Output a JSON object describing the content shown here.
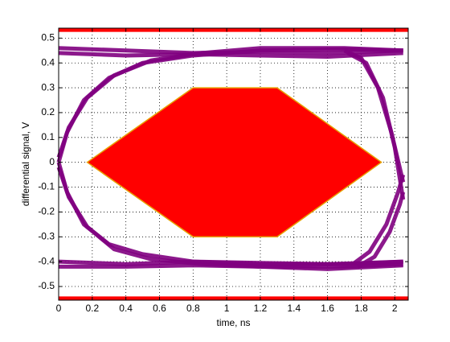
{
  "chart_data": {
    "type": "eye",
    "xlabel": "time, ns",
    "ylabel": "differential signal, V",
    "xlim": [
      0,
      2.08
    ],
    "ylim": [
      -0.555,
      0.54
    ],
    "xticks": [
      0,
      0.2,
      0.4,
      0.6,
      0.8,
      1,
      1.2,
      1.4,
      1.6,
      1.8,
      2
    ],
    "yticks": [
      -0.5,
      -0.4,
      -0.3,
      -0.2,
      -0.1,
      0,
      0.1,
      0.2,
      0.3,
      0.4,
      0.5
    ],
    "grid": true,
    "trace_color": "#800080",
    "traces": [
      {
        "x": [
          0,
          0.4,
          0.8,
          1.2,
          1.6,
          2.05
        ],
        "y": [
          0.46,
          0.45,
          0.44,
          0.445,
          0.44,
          0.45
        ]
      },
      {
        "x": [
          0,
          0.4,
          0.8,
          1.2,
          1.6,
          2.05
        ],
        "y": [
          0.44,
          0.43,
          0.435,
          0.43,
          0.425,
          0.44
        ]
      },
      {
        "x": [
          0,
          0.4,
          0.8,
          1.2,
          1.6,
          2.05
        ],
        "y": [
          -0.4,
          -0.41,
          -0.4,
          -0.405,
          -0.41,
          -0.4
        ]
      },
      {
        "x": [
          0,
          0.4,
          0.8,
          1.2,
          1.6,
          2.05
        ],
        "y": [
          -0.42,
          -0.42,
          -0.415,
          -0.42,
          -0.43,
          -0.415
        ]
      },
      {
        "x": [
          0,
          0.05,
          0.15,
          0.3,
          0.5,
          0.8,
          1.2,
          1.7,
          2.05
        ],
        "y": [
          0,
          0.12,
          0.25,
          0.34,
          0.4,
          0.43,
          0.45,
          0.455,
          0.45
        ]
      },
      {
        "x": [
          0,
          0.06,
          0.17,
          0.33,
          0.55,
          0.85,
          1.2,
          1.7,
          2.05
        ],
        "y": [
          0.02,
          0.14,
          0.26,
          0.35,
          0.41,
          0.44,
          0.46,
          0.46,
          0.45
        ]
      },
      {
        "x": [
          0,
          0.05,
          0.15,
          0.3,
          0.5,
          0.8,
          1.2,
          1.7,
          2.05
        ],
        "y": [
          0,
          -0.12,
          -0.25,
          -0.33,
          -0.37,
          -0.4,
          -0.41,
          -0.41,
          -0.4
        ]
      },
      {
        "x": [
          0,
          0.06,
          0.17,
          0.33,
          0.55,
          0.85,
          1.2,
          1.7,
          2.05
        ],
        "y": [
          -0.02,
          -0.14,
          -0.26,
          -0.35,
          -0.39,
          -0.41,
          -0.42,
          -0.42,
          -0.41
        ]
      },
      {
        "x": [
          1.7,
          1.8,
          1.9,
          1.98,
          2.05
        ],
        "y": [
          0.45,
          0.42,
          0.3,
          0.12,
          -0.08
        ]
      },
      {
        "x": [
          1.72,
          1.83,
          1.93,
          2.0,
          2.05
        ],
        "y": [
          0.44,
          0.4,
          0.26,
          0.06,
          -0.15
        ]
      },
      {
        "x": [
          1.75,
          1.85,
          1.95,
          2.02,
          2.05
        ],
        "y": [
          -0.41,
          -0.36,
          -0.25,
          -0.12,
          -0.05
        ]
      },
      {
        "x": [
          1.78,
          1.88,
          1.97,
          2.03,
          2.05
        ],
        "y": [
          -0.42,
          -0.38,
          -0.28,
          -0.17,
          -0.12
        ]
      }
    ],
    "mask_color": "#ff0000",
    "mask_edge_color": "#e8a000",
    "masks": [
      {
        "x": [
          0.17,
          0.8,
          1.3,
          1.92,
          1.3,
          0.8
        ],
        "y": [
          0,
          0.3,
          0.3,
          0,
          -0.3,
          -0.3
        ]
      },
      {
        "x": [
          0,
          2.08,
          2.08,
          0
        ],
        "y": [
          0.525,
          0.525,
          0.54,
          0.54
        ]
      },
      {
        "x": [
          0,
          2.08,
          2.08,
          0
        ],
        "y": [
          -0.54,
          -0.54,
          -0.555,
          -0.555
        ]
      }
    ]
  }
}
